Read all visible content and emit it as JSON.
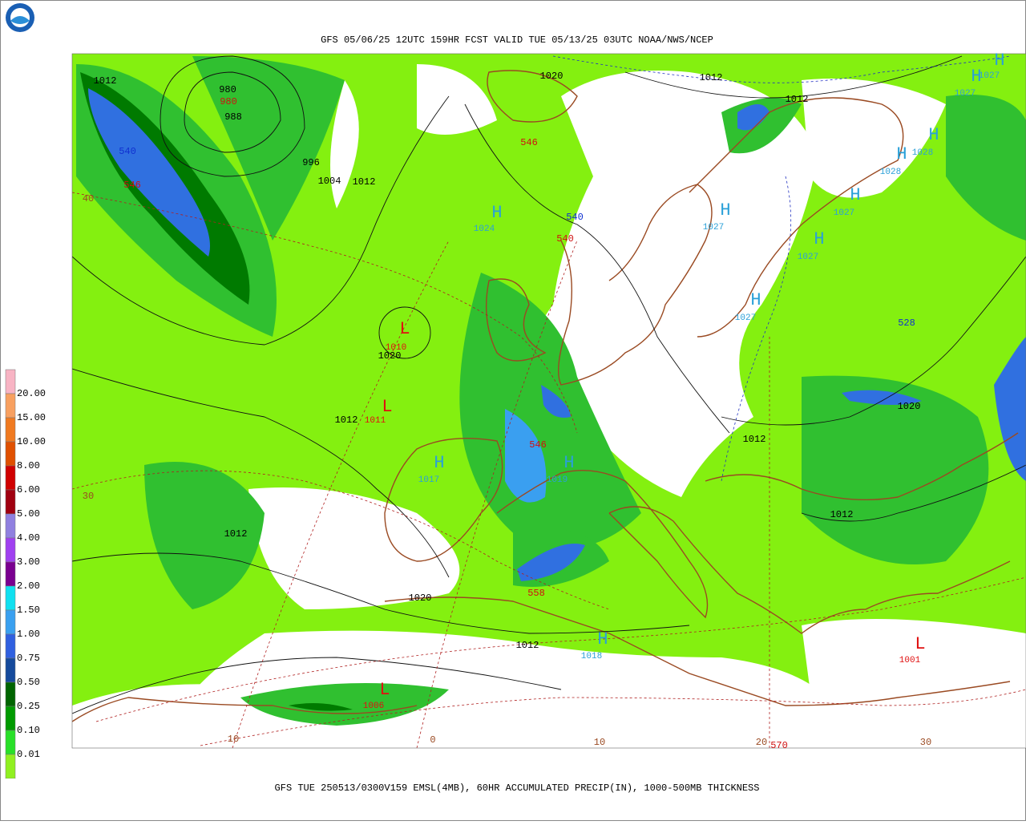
{
  "header": {
    "title": "GFS 05/06/25 12UTC 159HR FCST VALID TUE 05/13/25 03UTC NOAA/NWS/NCEP"
  },
  "footer": {
    "caption": "GFS TUE 250513/0300V159 EMSL(4MB), 60HR ACCUMULATED PRECIP(IN), 1000-500MB THICKNESS"
  },
  "legend": {
    "labels": [
      "20.00",
      "15.00",
      "10.00",
      "8.00",
      "6.00",
      "5.00",
      "4.00",
      "3.00",
      "2.00",
      "1.50",
      "1.00",
      "0.75",
      "0.50",
      "0.25",
      "0.10",
      "0.01"
    ],
    "colors": [
      "#f8b4c4",
      "#f8a060",
      "#f07a20",
      "#e05000",
      "#d00000",
      "#a00010",
      "#9080e0",
      "#a040f0",
      "#7a0090",
      "#10e0f0",
      "#3aa0f0",
      "#3060e0",
      "#154a9c",
      "#006400",
      "#009a00",
      "#28e028",
      "#90f020"
    ]
  },
  "map": {
    "pressure_centers": [
      {
        "symbol": "L",
        "value": "1010",
        "color": "#e01010"
      },
      {
        "symbol": "L",
        "value": "1011",
        "color": "#e01010"
      },
      {
        "symbol": "L",
        "value": "1006",
        "color": "#e01010"
      },
      {
        "symbol": "L",
        "value": "1001",
        "color": "#e01010"
      },
      {
        "symbol": "H",
        "value": "1024",
        "color": "#2aa0d8"
      },
      {
        "symbol": "H",
        "value": "1017",
        "color": "#2aa0d8"
      },
      {
        "symbol": "H",
        "value": "1019",
        "color": "#2aa0d8"
      },
      {
        "symbol": "H",
        "value": "1018",
        "color": "#2aa0d8"
      },
      {
        "symbol": "H",
        "value": "1027",
        "color": "#2aa0d8"
      },
      {
        "symbol": "H",
        "value": "1027",
        "color": "#2aa0d8"
      },
      {
        "symbol": "H",
        "value": "1027",
        "color": "#2aa0d8"
      },
      {
        "symbol": "H",
        "value": "1027",
        "color": "#2aa0d8"
      },
      {
        "symbol": "H",
        "value": "1028",
        "color": "#2aa0d8"
      },
      {
        "symbol": "H",
        "value": "1028",
        "color": "#2aa0d8"
      },
      {
        "symbol": "H",
        "value": "1027",
        "color": "#2aa0d8"
      },
      {
        "symbol": "H",
        "value": "1027",
        "color": "#2aa0d8"
      }
    ],
    "isobar_labels": [
      "1012",
      "980",
      "988",
      "996",
      "1004",
      "1012",
      "1020",
      "1012",
      "1020",
      "1012",
      "1012",
      "1020",
      "1012",
      "1012",
      "1020",
      "1012",
      "1012"
    ],
    "thickness_labels": [
      {
        "text": "540",
        "color": "#1030d0"
      },
      {
        "text": "546",
        "color": "#d01010"
      },
      {
        "text": "546",
        "color": "#d01010"
      },
      {
        "text": "540",
        "color": "#1030d0"
      },
      {
        "text": "540",
        "color": "#d01010"
      },
      {
        "text": "546",
        "color": "#d01010"
      },
      {
        "text": "558",
        "color": "#d01010"
      },
      {
        "text": "528",
        "color": "#1030d0"
      },
      {
        "text": "570",
        "color": "#d01010"
      },
      {
        "text": "980",
        "color": "#d01010"
      }
    ],
    "latitude_labels": [
      "40",
      "30",
      "10",
      "0",
      "10",
      "20",
      "30"
    ]
  }
}
